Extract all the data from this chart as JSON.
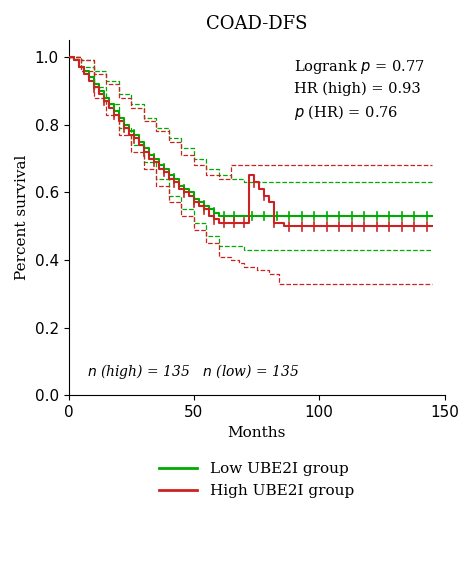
{
  "title": "COAD-DFS",
  "xlabel": "Months",
  "ylabel": "Percent survival",
  "xlim": [
    0,
    150
  ],
  "ylim": [
    0.0,
    1.05
  ],
  "yticks": [
    0.0,
    0.2,
    0.4,
    0.6,
    0.8,
    1.0
  ],
  "xticks": [
    0,
    50,
    100,
    150
  ],
  "logrank_p": "0.77",
  "hr_high": "0.93",
  "p_hr": "0.76",
  "n_high": 135,
  "n_low": 135,
  "low_color": "#00aa00",
  "high_color": "#cc2222",
  "background_color": "#ffffff",
  "title_fontsize": 13,
  "label_fontsize": 11,
  "tick_fontsize": 11,
  "legend_fontsize": 11,
  "low_km_x": [
    0,
    2,
    4,
    6,
    8,
    10,
    12,
    14,
    16,
    18,
    20,
    22,
    24,
    26,
    28,
    30,
    32,
    34,
    36,
    38,
    40,
    42,
    44,
    46,
    48,
    50,
    52,
    54,
    56,
    58,
    60,
    62,
    64,
    66,
    68,
    70,
    72,
    145
  ],
  "low_km_y": [
    1.0,
    0.99,
    0.97,
    0.96,
    0.94,
    0.92,
    0.9,
    0.88,
    0.86,
    0.84,
    0.82,
    0.8,
    0.78,
    0.77,
    0.75,
    0.73,
    0.71,
    0.7,
    0.68,
    0.67,
    0.65,
    0.64,
    0.62,
    0.61,
    0.6,
    0.58,
    0.57,
    0.56,
    0.55,
    0.54,
    0.53,
    0.53,
    0.53,
    0.53,
    0.53,
    0.53,
    0.53,
    0.53
  ],
  "high_km_x": [
    0,
    2,
    4,
    6,
    8,
    10,
    12,
    14,
    16,
    18,
    20,
    22,
    24,
    26,
    28,
    30,
    32,
    34,
    36,
    38,
    40,
    42,
    44,
    46,
    48,
    50,
    52,
    54,
    56,
    58,
    60,
    62,
    64,
    66,
    68,
    70,
    72,
    74,
    76,
    78,
    80,
    82,
    84,
    86,
    145
  ],
  "high_km_y": [
    1.0,
    0.99,
    0.97,
    0.95,
    0.93,
    0.91,
    0.89,
    0.87,
    0.85,
    0.83,
    0.81,
    0.79,
    0.77,
    0.76,
    0.74,
    0.72,
    0.7,
    0.69,
    0.67,
    0.66,
    0.64,
    0.63,
    0.61,
    0.6,
    0.59,
    0.57,
    0.56,
    0.55,
    0.53,
    0.52,
    0.51,
    0.51,
    0.51,
    0.51,
    0.51,
    0.51,
    0.65,
    0.63,
    0.61,
    0.59,
    0.57,
    0.51,
    0.51,
    0.5,
    0.5
  ],
  "low_ci_up_x": [
    0,
    5,
    10,
    15,
    20,
    25,
    30,
    35,
    40,
    45,
    50,
    55,
    60,
    65,
    70,
    72,
    145
  ],
  "low_ci_up_y": [
    1.0,
    0.99,
    0.96,
    0.93,
    0.89,
    0.86,
    0.82,
    0.79,
    0.76,
    0.73,
    0.7,
    0.67,
    0.65,
    0.64,
    0.63,
    0.63,
    0.63
  ],
  "low_ci_lo_x": [
    0,
    5,
    10,
    15,
    20,
    25,
    30,
    35,
    40,
    45,
    50,
    55,
    60,
    65,
    68,
    70,
    72,
    145
  ],
  "low_ci_lo_y": [
    1.0,
    0.97,
    0.91,
    0.86,
    0.79,
    0.74,
    0.69,
    0.64,
    0.59,
    0.55,
    0.51,
    0.47,
    0.44,
    0.44,
    0.44,
    0.43,
    0.43,
    0.43
  ],
  "high_ci_up_x": [
    0,
    5,
    10,
    15,
    20,
    25,
    30,
    35,
    40,
    45,
    50,
    55,
    60,
    65,
    70,
    75,
    80,
    86,
    145
  ],
  "high_ci_up_y": [
    1.0,
    0.99,
    0.95,
    0.92,
    0.88,
    0.85,
    0.81,
    0.78,
    0.75,
    0.71,
    0.68,
    0.65,
    0.64,
    0.68,
    0.68,
    0.68,
    0.68,
    0.68,
    0.68
  ],
  "high_ci_lo_x": [
    0,
    5,
    10,
    15,
    20,
    25,
    30,
    35,
    40,
    45,
    50,
    55,
    60,
    65,
    68,
    70,
    75,
    80,
    84,
    86,
    145
  ],
  "high_ci_lo_y": [
    1.0,
    0.96,
    0.88,
    0.83,
    0.77,
    0.72,
    0.67,
    0.62,
    0.57,
    0.53,
    0.49,
    0.45,
    0.41,
    0.4,
    0.39,
    0.38,
    0.37,
    0.36,
    0.33,
    0.33,
    0.33
  ],
  "low_censors_x_flat": [
    73,
    78,
    83,
    88,
    93,
    98,
    103,
    108,
    113,
    118,
    123,
    128,
    133,
    138,
    143
  ],
  "low_censors_y_flat": [
    0.53,
    0.53,
    0.53,
    0.53,
    0.53,
    0.53,
    0.53,
    0.53,
    0.53,
    0.53,
    0.53,
    0.53,
    0.53,
    0.53,
    0.53
  ],
  "high_censors_x_flat": [
    88,
    93,
    98,
    103,
    108,
    113,
    118,
    123,
    128,
    133,
    138,
    143
  ],
  "high_censors_y_flat": [
    0.5,
    0.5,
    0.5,
    0.5,
    0.5,
    0.5,
    0.5,
    0.5,
    0.5,
    0.5,
    0.5,
    0.5
  ],
  "low_censors_x_early": [
    10,
    14,
    18,
    22,
    26,
    30,
    34,
    38,
    42,
    46,
    50,
    54,
    58,
    62,
    66
  ],
  "high_censors_x_early": [
    10,
    14,
    18,
    22,
    26,
    30,
    34,
    38,
    42,
    46,
    50,
    54,
    58,
    62,
    66,
    70,
    74,
    78,
    82
  ]
}
